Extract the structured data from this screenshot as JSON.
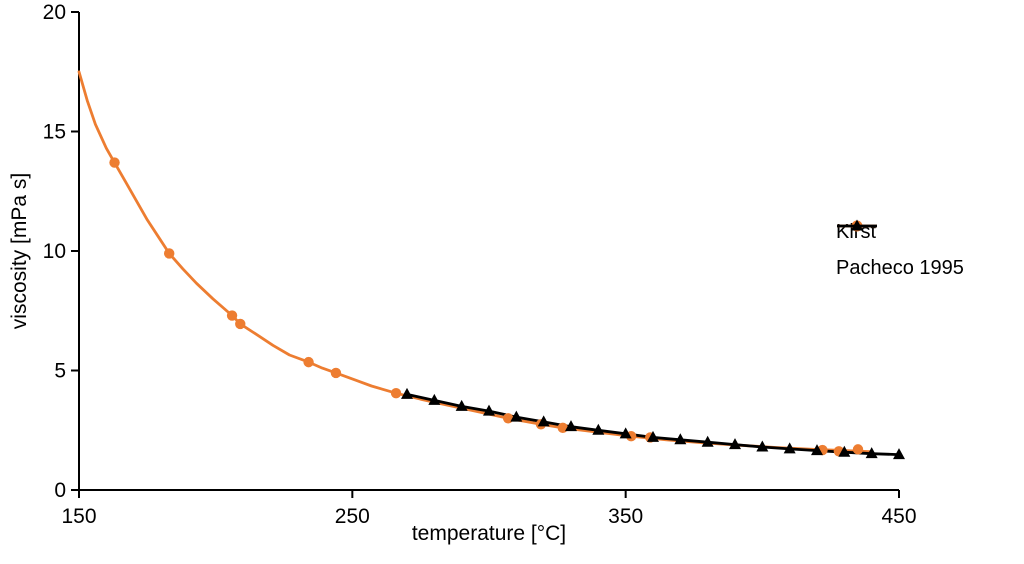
{
  "chart_data": {
    "type": "line",
    "title": "",
    "xlabel": "temperature [°C]",
    "ylabel": "viscosity [mPa s]",
    "xlim": [
      150,
      450
    ],
    "ylim": [
      0,
      20
    ],
    "x_ticks": [
      150,
      250,
      350,
      450
    ],
    "y_ticks": [
      0,
      5,
      10,
      15,
      20
    ],
    "grid": false,
    "legend_position": "right",
    "axis_color": "#000000",
    "series": [
      {
        "name": "Kirst",
        "color": "#ED7D31",
        "marker": "circle",
        "line": [
          [
            150,
            17.5
          ],
          [
            153,
            16.3
          ],
          [
            156,
            15.3
          ],
          [
            160,
            14.3
          ],
          [
            163,
            13.7
          ],
          [
            167,
            12.9
          ],
          [
            171,
            12.1
          ],
          [
            175,
            11.3
          ],
          [
            179,
            10.6
          ],
          [
            183,
            9.9
          ],
          [
            188,
            9.25
          ],
          [
            193,
            8.65
          ],
          [
            199,
            8.0
          ],
          [
            206,
            7.3
          ],
          [
            209,
            6.95
          ],
          [
            215,
            6.5
          ],
          [
            221,
            6.05
          ],
          [
            227,
            5.65
          ],
          [
            234,
            5.35
          ],
          [
            239,
            5.1
          ],
          [
            244,
            4.9
          ],
          [
            250,
            4.65
          ],
          [
            257,
            4.35
          ],
          [
            266,
            4.05
          ],
          [
            275,
            3.8
          ],
          [
            285,
            3.55
          ],
          [
            295,
            3.3
          ],
          [
            307,
            3.0
          ],
          [
            319,
            2.75
          ],
          [
            327,
            2.6
          ],
          [
            340,
            2.42
          ],
          [
            352,
            2.25
          ],
          [
            365,
            2.1
          ],
          [
            378,
            1.98
          ],
          [
            392,
            1.87
          ],
          [
            405,
            1.78
          ],
          [
            422,
            1.68
          ],
          [
            428,
            1.66
          ],
          [
            440,
            1.6
          ]
        ],
        "markers": [
          [
            163,
            13.7
          ],
          [
            183,
            9.9
          ],
          [
            206,
            7.3
          ],
          [
            209,
            6.95
          ],
          [
            234,
            5.35
          ],
          [
            244,
            4.9
          ],
          [
            266,
            4.05
          ],
          [
            307,
            3.0
          ],
          [
            319,
            2.75
          ],
          [
            327,
            2.6
          ],
          [
            352,
            2.25
          ],
          [
            359,
            2.2
          ],
          [
            422,
            1.67
          ],
          [
            428,
            1.62
          ],
          [
            435,
            1.7
          ]
        ]
      },
      {
        "name": "Pacheco 1995",
        "color": "#000000",
        "marker": "triangle",
        "line": [
          [
            270,
            4.0
          ],
          [
            280,
            3.75
          ],
          [
            290,
            3.5
          ],
          [
            300,
            3.3
          ],
          [
            310,
            3.05
          ],
          [
            320,
            2.85
          ],
          [
            330,
            2.65
          ],
          [
            340,
            2.5
          ],
          [
            350,
            2.35
          ],
          [
            360,
            2.2
          ],
          [
            370,
            2.1
          ],
          [
            380,
            2.0
          ],
          [
            390,
            1.9
          ],
          [
            400,
            1.8
          ],
          [
            410,
            1.72
          ],
          [
            420,
            1.65
          ],
          [
            430,
            1.58
          ],
          [
            440,
            1.52
          ],
          [
            450,
            1.48
          ]
        ],
        "markers": [
          [
            270,
            4.0
          ],
          [
            280,
            3.75
          ],
          [
            290,
            3.5
          ],
          [
            300,
            3.3
          ],
          [
            310,
            3.05
          ],
          [
            320,
            2.85
          ],
          [
            330,
            2.65
          ],
          [
            340,
            2.5
          ],
          [
            350,
            2.35
          ],
          [
            360,
            2.2
          ],
          [
            370,
            2.1
          ],
          [
            380,
            2.0
          ],
          [
            390,
            1.9
          ],
          [
            400,
            1.8
          ],
          [
            410,
            1.72
          ],
          [
            420,
            1.65
          ],
          [
            430,
            1.58
          ],
          [
            440,
            1.52
          ],
          [
            450,
            1.48
          ]
        ]
      }
    ]
  }
}
